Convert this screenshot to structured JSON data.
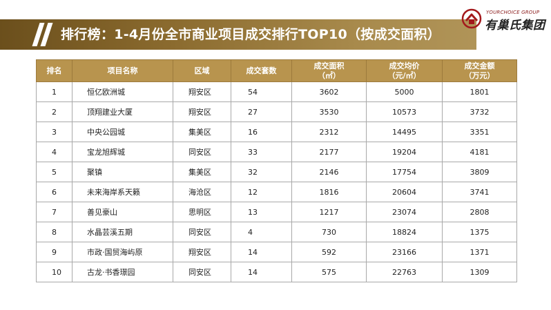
{
  "header": {
    "title": "排行榜：1-4月份全市商业项目成交排行TOP10（按成交面积）"
  },
  "logo": {
    "en": "YOURCHOICE GROUP",
    "cn": "有巢氏集团"
  },
  "table": {
    "headers": [
      {
        "line1": "排名",
        "line2": ""
      },
      {
        "line1": "项目名称",
        "line2": ""
      },
      {
        "line1": "区域",
        "line2": ""
      },
      {
        "line1": "成交套数",
        "line2": ""
      },
      {
        "line1": "成交面积",
        "line2": "（㎡）"
      },
      {
        "line1": "成交均价",
        "line2": "（元/㎡）"
      },
      {
        "line1": "成交金额",
        "line2": "（万元）"
      }
    ],
    "rows": [
      [
        "1",
        "恒亿欧洲城",
        "翔安区",
        "54",
        "3602",
        "5000",
        "1801"
      ],
      [
        "2",
        "顶翔建业大厦",
        "翔安区",
        "27",
        "3530",
        "10573",
        "3732"
      ],
      [
        "3",
        "中央公园城",
        "集美区",
        "16",
        "2312",
        "14495",
        "3351"
      ],
      [
        "4",
        "宝龙旭辉城",
        "同安区",
        "33",
        "2177",
        "19204",
        "4181"
      ],
      [
        "5",
        "聚镇",
        "集美区",
        "32",
        "2146",
        "17754",
        "3809"
      ],
      [
        "6",
        "未来海岸系天籁",
        "海沧区",
        "12",
        "1816",
        "20604",
        "3741"
      ],
      [
        "7",
        "善见豪山",
        "思明区",
        "13",
        "1217",
        "23074",
        "2808"
      ],
      [
        "8",
        "水晶芸溪五期",
        "同安区",
        "4",
        "730",
        "18824",
        "1375"
      ],
      [
        "9",
        "市政·国贸海屿原",
        "翔安区",
        "14",
        "592",
        "23166",
        "1371"
      ],
      [
        "10",
        "古龙·书香璟园",
        "同安区",
        "14",
        "575",
        "22763",
        "1309"
      ]
    ]
  }
}
